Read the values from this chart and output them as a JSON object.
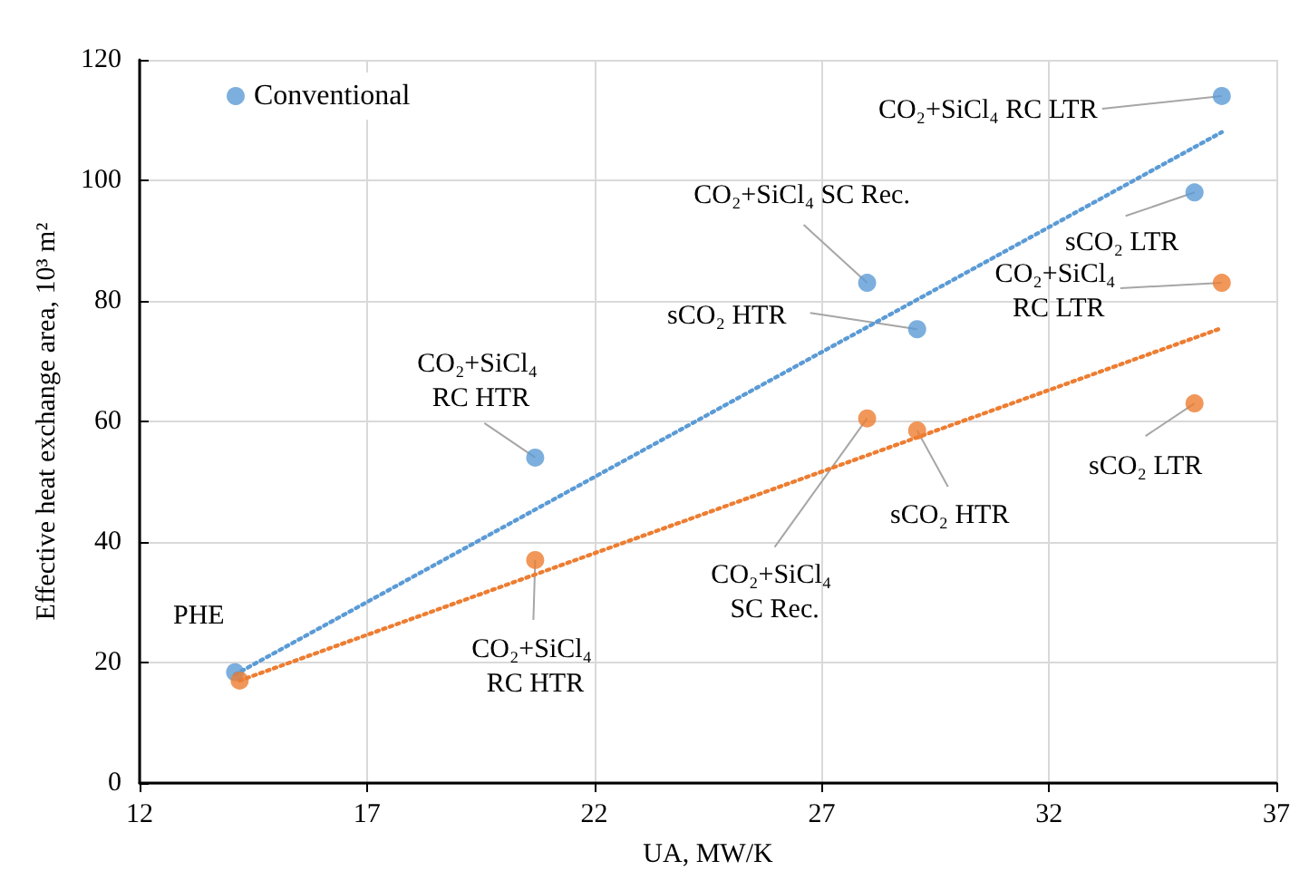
{
  "chart_data": {
    "type": "scatter",
    "xlabel": "UA, MW/K",
    "ylabel": "Effective heat exchange area, 10³ m²",
    "xlim": [
      12,
      37
    ],
    "xticks": [
      12,
      17,
      22,
      27,
      32,
      37
    ],
    "ylim": [
      0,
      120
    ],
    "yticks": [
      0,
      20,
      40,
      60,
      80,
      100,
      120
    ],
    "grid": true,
    "legend": "top left",
    "marker": "circle",
    "series": [
      {
        "name": "Conventional",
        "color": "#5b9bd5",
        "x": [
          14.1,
          20.7,
          28.0,
          29.1,
          35.2,
          35.8
        ],
        "values": [
          18.4,
          54,
          83,
          75.3,
          98,
          114
        ]
      },
      {
        "color": "#ed7d31",
        "x": [
          14.2,
          20.7,
          28.0,
          29.1,
          35.2,
          35.8
        ],
        "values": [
          17,
          37,
          60.5,
          58.5,
          63,
          83
        ]
      },
      {
        "type": "line",
        "color": "#5b9bd5",
        "x": [
          14.1,
          35.8
        ],
        "values": [
          18,
          108
        ],
        "line_style": "dotted",
        "marker": "none"
      },
      {
        "type": "line",
        "color": "#ed7d31",
        "x": [
          14.2,
          35.8
        ],
        "values": [
          17,
          75.5
        ],
        "line_style": "dotted",
        "marker": "none"
      }
    ],
    "annotations": [
      {
        "text": "PHE",
        "x": 14.1,
        "y": 18.4
      },
      {
        "text": "CO₂+SiCl₄ RC HTR",
        "x": 20.7,
        "y": 54
      },
      {
        "text": "CO₂+SiCl₄ SC Rec.",
        "x": 28.0,
        "y": 83
      },
      {
        "text": "sCO₂ HTR",
        "x": 29.1,
        "y": 75.3
      },
      {
        "text": "sCO₂ LTR",
        "x": 35.2,
        "y": 98
      },
      {
        "text": "CO₂+SiCl₄ RC LTR",
        "x": 35.8,
        "y": 114
      },
      {
        "text": "CO₂+SiCl₄ RC HTR",
        "x": 20.7,
        "y": 37
      },
      {
        "text": "CO₂+SiCl₄ SC Rec.",
        "x": 28.0,
        "y": 60.5
      },
      {
        "text": "sCO₂ HTR",
        "x": 29.1,
        "y": 58.5
      },
      {
        "text": "sCO₂ LTR",
        "x": 35.2,
        "y": 63
      },
      {
        "text": "CO₂+SiCl₄ RC LTR",
        "x": 35.8,
        "y": 83
      }
    ]
  }
}
